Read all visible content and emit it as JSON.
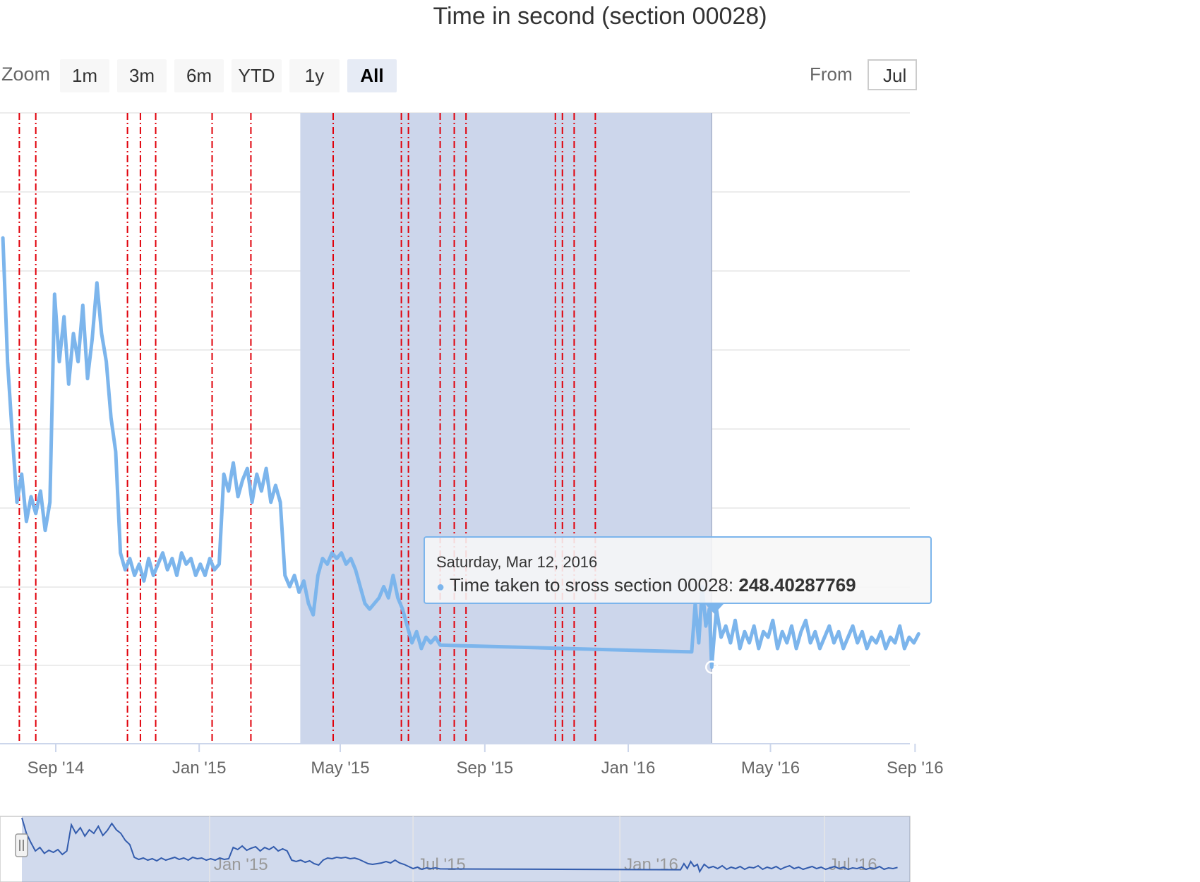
{
  "range_selector": {
    "zoom_label": "Zoom",
    "buttons": [
      "1m",
      "3m",
      "6m",
      "YTD",
      "1y",
      "All"
    ],
    "active": "All",
    "from_label": "From",
    "from_value": "Jul"
  },
  "tooltip": {
    "date": "Saturday, Mar 12, 2016",
    "series": "Time taken to sross section 00028",
    "value": "248.40287769"
  },
  "colors": {
    "series": "#7cb5ec",
    "series_highlight": "#6a9ee0",
    "band": "#ccd6eb",
    "plot_line": "#e0000a",
    "grid": "#e6e6e6"
  },
  "chart_data": {
    "type": "line",
    "title": "Time in second (section 00028)",
    "xlabel": "",
    "ylabel": "",
    "x_ticks": [
      "Sep '14",
      "Jan '15",
      "May '15",
      "Sep '15",
      "Jan '16",
      "May '16",
      "Sep '16"
    ],
    "navigator_ticks": [
      "Jan '15",
      "Jul '15",
      "Jan '16",
      "Jul '16"
    ],
    "y_axis_labels_visible": false,
    "grid": true,
    "highlight_band": {
      "from": "2015-03-28",
      "to": "2016-03-12"
    },
    "plot_lines": [
      "2014-08-01",
      "2014-08-15",
      "2014-11-01",
      "2014-11-12",
      "2014-11-25",
      "2015-01-12",
      "2015-02-14",
      "2015-04-25",
      "2015-06-22",
      "2015-06-28",
      "2015-07-25",
      "2015-08-06",
      "2015-08-16",
      "2015-10-31",
      "2015-11-06",
      "2015-11-16",
      "2015-12-04"
    ],
    "series": [
      {
        "name": "Time taken to sross section 00028",
        "points": [
          [
            "2014-07-18",
            630
          ],
          [
            "2014-07-22",
            520
          ],
          [
            "2014-07-26",
            455
          ],
          [
            "2014-07-30",
            395
          ],
          [
            "2014-08-03",
            420
          ],
          [
            "2014-08-07",
            378
          ],
          [
            "2014-08-11",
            400
          ],
          [
            "2014-08-15",
            385
          ],
          [
            "2014-08-19",
            405
          ],
          [
            "2014-08-23",
            370
          ],
          [
            "2014-08-27",
            395
          ],
          [
            "2014-08-31",
            580
          ],
          [
            "2014-09-04",
            520
          ],
          [
            "2014-09-08",
            560
          ],
          [
            "2014-09-12",
            500
          ],
          [
            "2014-09-16",
            545
          ],
          [
            "2014-09-20",
            520
          ],
          [
            "2014-09-24",
            570
          ],
          [
            "2014-09-28",
            505
          ],
          [
            "2014-10-02",
            540
          ],
          [
            "2014-10-06",
            590
          ],
          [
            "2014-10-10",
            545
          ],
          [
            "2014-10-14",
            520
          ],
          [
            "2014-10-18",
            470
          ],
          [
            "2014-10-22",
            440
          ],
          [
            "2014-10-26",
            350
          ],
          [
            "2014-10-30",
            335
          ],
          [
            "2014-11-03",
            345
          ],
          [
            "2014-11-07",
            330
          ],
          [
            "2014-11-11",
            340
          ],
          [
            "2014-11-15",
            325
          ],
          [
            "2014-11-19",
            345
          ],
          [
            "2014-11-23",
            330
          ],
          [
            "2014-11-27",
            340
          ],
          [
            "2014-12-01",
            350
          ],
          [
            "2014-12-05",
            335
          ],
          [
            "2014-12-09",
            345
          ],
          [
            "2014-12-13",
            330
          ],
          [
            "2014-12-17",
            350
          ],
          [
            "2014-12-21",
            340
          ],
          [
            "2014-12-25",
            345
          ],
          [
            "2014-12-29",
            330
          ],
          [
            "2015-01-02",
            340
          ],
          [
            "2015-01-06",
            330
          ],
          [
            "2015-01-10",
            345
          ],
          [
            "2015-01-14",
            335
          ],
          [
            "2015-01-18",
            340
          ],
          [
            "2015-01-22",
            420
          ],
          [
            "2015-01-26",
            405
          ],
          [
            "2015-01-30",
            430
          ],
          [
            "2015-02-03",
            400
          ],
          [
            "2015-02-07",
            415
          ],
          [
            "2015-02-11",
            425
          ],
          [
            "2015-02-15",
            395
          ],
          [
            "2015-02-19",
            420
          ],
          [
            "2015-02-23",
            405
          ],
          [
            "2015-02-27",
            425
          ],
          [
            "2015-03-03",
            395
          ],
          [
            "2015-03-07",
            410
          ],
          [
            "2015-03-11",
            395
          ],
          [
            "2015-03-15",
            330
          ],
          [
            "2015-03-19",
            320
          ],
          [
            "2015-03-23",
            330
          ],
          [
            "2015-03-27",
            315
          ],
          [
            "2015-03-31",
            325
          ],
          [
            "2015-04-04",
            305
          ],
          [
            "2015-04-08",
            295
          ],
          [
            "2015-04-12",
            330
          ],
          [
            "2015-04-16",
            345
          ],
          [
            "2015-04-20",
            340
          ],
          [
            "2015-04-24",
            350
          ],
          [
            "2015-04-28",
            345
          ],
          [
            "2015-05-02",
            350
          ],
          [
            "2015-05-06",
            340
          ],
          [
            "2015-05-10",
            345
          ],
          [
            "2015-05-14",
            335
          ],
          [
            "2015-05-18",
            320
          ],
          [
            "2015-05-22",
            305
          ],
          [
            "2015-05-26",
            300
          ],
          [
            "2015-05-30",
            305
          ],
          [
            "2015-06-03",
            310
          ],
          [
            "2015-06-07",
            320
          ],
          [
            "2015-06-11",
            310
          ],
          [
            "2015-06-15",
            330
          ],
          [
            "2015-06-19",
            310
          ],
          [
            "2015-06-23",
            300
          ],
          [
            "2015-06-27",
            285
          ],
          [
            "2015-07-01",
            270
          ],
          [
            "2015-07-05",
            280
          ],
          [
            "2015-07-09",
            265
          ],
          [
            "2015-07-13",
            275
          ],
          [
            "2015-07-17",
            270
          ],
          [
            "2015-07-21",
            275
          ],
          [
            "2015-07-25",
            268
          ],
          [
            "2016-02-24",
            262
          ],
          [
            "2016-02-27",
            305
          ],
          [
            "2016-03-01",
            270
          ],
          [
            "2016-03-04",
            320
          ],
          [
            "2016-03-07",
            285
          ],
          [
            "2016-03-10",
            300
          ],
          [
            "2016-03-12",
            248.40287769
          ],
          [
            "2016-03-16",
            300
          ],
          [
            "2016-03-20",
            275
          ],
          [
            "2016-03-24",
            285
          ],
          [
            "2016-03-28",
            270
          ],
          [
            "2016-04-01",
            290
          ],
          [
            "2016-04-05",
            265
          ],
          [
            "2016-04-09",
            280
          ],
          [
            "2016-04-13",
            270
          ],
          [
            "2016-04-17",
            285
          ],
          [
            "2016-04-21",
            265
          ],
          [
            "2016-04-25",
            280
          ],
          [
            "2016-04-29",
            275
          ],
          [
            "2016-05-03",
            290
          ],
          [
            "2016-05-07",
            265
          ],
          [
            "2016-05-11",
            280
          ],
          [
            "2016-05-15",
            270
          ],
          [
            "2016-05-19",
            285
          ],
          [
            "2016-05-23",
            265
          ],
          [
            "2016-05-27",
            280
          ],
          [
            "2016-05-31",
            290
          ],
          [
            "2016-06-04",
            270
          ],
          [
            "2016-06-08",
            280
          ],
          [
            "2016-06-12",
            265
          ],
          [
            "2016-06-16",
            275
          ],
          [
            "2016-06-20",
            285
          ],
          [
            "2016-06-24",
            270
          ],
          [
            "2016-06-28",
            280
          ],
          [
            "2016-07-02",
            265
          ],
          [
            "2016-07-06",
            275
          ],
          [
            "2016-07-10",
            285
          ],
          [
            "2016-07-14",
            270
          ],
          [
            "2016-07-18",
            280
          ],
          [
            "2016-07-22",
            265
          ],
          [
            "2016-07-26",
            275
          ],
          [
            "2016-07-30",
            270
          ],
          [
            "2016-08-03",
            280
          ],
          [
            "2016-08-07",
            265
          ],
          [
            "2016-08-11",
            275
          ],
          [
            "2016-08-15",
            270
          ],
          [
            "2016-08-19",
            285
          ],
          [
            "2016-08-23",
            265
          ],
          [
            "2016-08-27",
            275
          ],
          [
            "2016-08-31",
            270
          ],
          [
            "2016-09-04",
            278
          ]
        ]
      }
    ]
  }
}
